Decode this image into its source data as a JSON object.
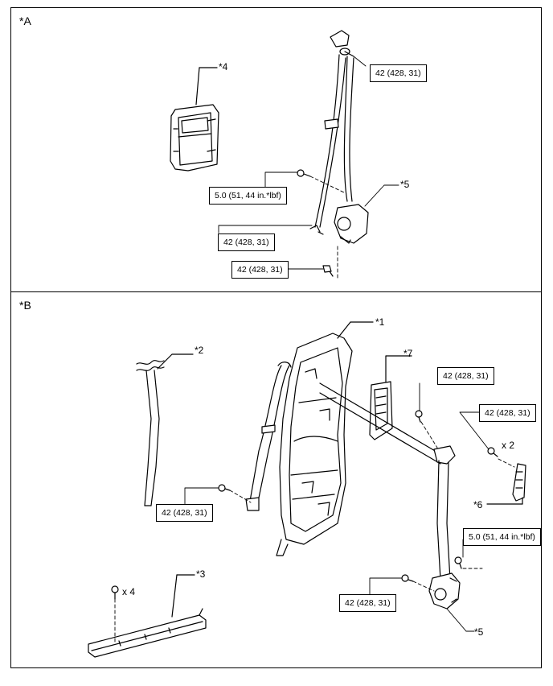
{
  "panels": {
    "a": {
      "label": "*A"
    },
    "b": {
      "label": "*B"
    }
  },
  "callouts": {
    "c1": "*1",
    "c2": "*2",
    "c3": "*3",
    "c4": "*4",
    "c5": "*5",
    "c6": "*6",
    "c7": "*7"
  },
  "torques": {
    "bolt_42": "42 (428, 31)",
    "bolt_5": "5.0 (51, 44 in.*lbf)"
  },
  "quantities": {
    "x2": "x 2",
    "x4": "x 4"
  }
}
